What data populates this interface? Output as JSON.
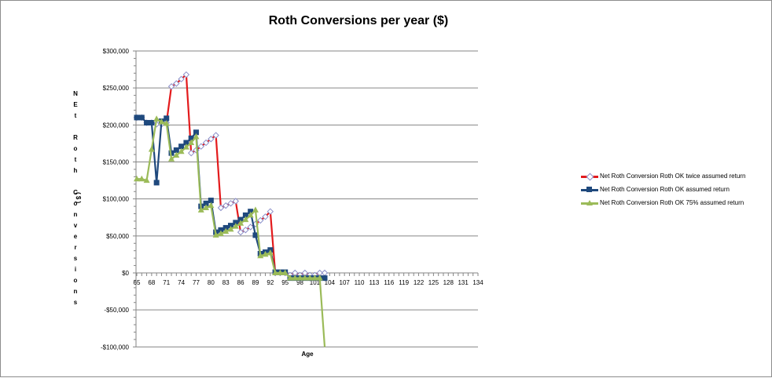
{
  "chart_data": {
    "type": "line",
    "title": "Roth Conversions per year ($)",
    "xlabel": "Age",
    "ylabel": "NEt Roth Conversions ($)",
    "ylabel_chars": [
      "N",
      "E",
      "t",
      "",
      "R",
      "o",
      "t",
      "h",
      "",
      "C",
      "o",
      "n",
      "v",
      "e",
      "r",
      "s",
      "i",
      "o",
      "n",
      "s"
    ],
    "ylabel_suffix": "( $ )",
    "ylim": [
      -100000,
      300000
    ],
    "y_ticks": [
      300000,
      250000,
      200000,
      150000,
      100000,
      50000,
      0,
      -50000,
      -100000
    ],
    "y_tick_labels": [
      "$300,000",
      "$250,000",
      "$200,000",
      "$150,000",
      "$100,000",
      "$50,000",
      "$0",
      "-$50,000",
      "-$100,000"
    ],
    "xlim": [
      65,
      134
    ],
    "x_tick_labels": [
      "65",
      "68",
      "71",
      "74",
      "77",
      "80",
      "83",
      "86",
      "89",
      "92",
      "95",
      "98",
      "101",
      "104",
      "107",
      "110",
      "113",
      "116",
      "119",
      "122",
      "125",
      "128",
      "131",
      "134"
    ],
    "grid": "horizontal major",
    "legend_position": "right",
    "x": [
      65,
      66,
      67,
      68,
      69,
      70,
      71,
      72,
      73,
      74,
      75,
      76,
      77,
      78,
      79,
      80,
      81,
      82,
      83,
      84,
      85,
      86,
      87,
      88,
      89,
      90,
      91,
      92,
      93,
      94,
      95,
      96,
      97,
      98,
      99,
      100,
      101,
      102,
      103
    ],
    "series": [
      {
        "name": "Net Roth Conversion Roth OK twice assumed return",
        "color": "#e31a1c",
        "marker": "diamond-open",
        "values": [
          210000,
          210000,
          203000,
          203000,
          201000,
          201000,
          203000,
          252000,
          256000,
          262000,
          268000,
          162000,
          166000,
          171000,
          176000,
          181000,
          186000,
          88000,
          91000,
          94000,
          97000,
          55000,
          58000,
          62000,
          66000,
          71000,
          76000,
          83000,
          0,
          0,
          0,
          -3000,
          0,
          -3000,
          0,
          -3000,
          -3000,
          0,
          0
        ]
      },
      {
        "name": "Net Roth Conversion Roth OK assumed return",
        "color": "#1f497d",
        "marker": "square",
        "values": [
          210000,
          210000,
          203000,
          203000,
          122000,
          205000,
          209000,
          162000,
          166000,
          171000,
          176000,
          182000,
          190000,
          90000,
          94000,
          98000,
          55000,
          58000,
          61000,
          64000,
          68000,
          72000,
          78000,
          83000,
          51000,
          26000,
          28000,
          31000,
          1000,
          1000,
          1000,
          -7000,
          -7000,
          -7000,
          -7000,
          -7000,
          -7000,
          -7000,
          -7000
        ]
      },
      {
        "name": "Net Roth Conversion Roth OK 75% assumed return",
        "color": "#9bbb59",
        "marker": "triangle",
        "values": [
          127000,
          127000,
          125000,
          167000,
          208000,
          204000,
          202000,
          154000,
          159000,
          164000,
          170000,
          176000,
          184000,
          85000,
          88000,
          91000,
          51000,
          53000,
          56000,
          59000,
          63000,
          67000,
          72000,
          78000,
          85000,
          23000,
          25000,
          27000,
          0,
          0,
          0,
          -7000,
          -7000,
          -7000,
          -7000,
          -7000,
          -7000,
          -7000,
          -100000
        ]
      }
    ]
  }
}
